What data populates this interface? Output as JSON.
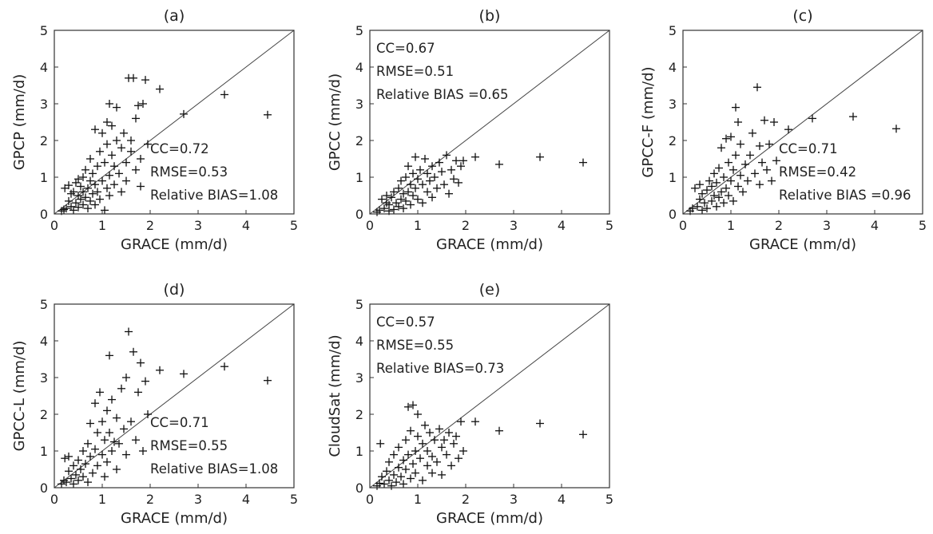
{
  "chart_data": [
    {
      "type": "scatter",
      "panel": "(a)",
      "xlabel": "GRACE (mm/d)",
      "ylabel": "GPCP (mm/d)",
      "xlim": [
        0,
        5
      ],
      "ylim": [
        0,
        5
      ],
      "xticks": [
        "0",
        "1",
        "2",
        "3",
        "4",
        "5"
      ],
      "yticks": [
        "0",
        "1",
        "2",
        "3",
        "4",
        "5"
      ],
      "reference_line": "1:1",
      "stats": [
        "CC=0.72",
        "RMSE=0.53",
        "Relative BIAS=1.08"
      ],
      "stats_position": "bottom-right",
      "points": [
        [
          0.15,
          0.08
        ],
        [
          0.2,
          0.12
        ],
        [
          0.22,
          0.7
        ],
        [
          0.25,
          0.15
        ],
        [
          0.3,
          0.35
        ],
        [
          0.3,
          0.78
        ],
        [
          0.35,
          0.2
        ],
        [
          0.35,
          0.55
        ],
        [
          0.4,
          0.1
        ],
        [
          0.4,
          0.6
        ],
        [
          0.45,
          0.3
        ],
        [
          0.45,
          0.85
        ],
        [
          0.5,
          0.18
        ],
        [
          0.5,
          0.5
        ],
        [
          0.5,
          0.95
        ],
        [
          0.55,
          0.4
        ],
        [
          0.55,
          0.75
        ],
        [
          0.6,
          0.25
        ],
        [
          0.6,
          0.6
        ],
        [
          0.6,
          1.0
        ],
        [
          0.65,
          0.45
        ],
        [
          0.65,
          1.2
        ],
        [
          0.7,
          0.15
        ],
        [
          0.7,
          0.7
        ],
        [
          0.75,
          0.35
        ],
        [
          0.75,
          0.9
        ],
        [
          0.75,
          1.5
        ],
        [
          0.8,
          0.55
        ],
        [
          0.8,
          1.1
        ],
        [
          0.85,
          0.25
        ],
        [
          0.85,
          0.8
        ],
        [
          0.85,
          2.3
        ],
        [
          0.9,
          0.6
        ],
        [
          0.9,
          1.3
        ],
        [
          0.95,
          0.4
        ],
        [
          0.95,
          1.7
        ],
        [
          1.0,
          0.9
        ],
        [
          1.0,
          2.2
        ],
        [
          1.05,
          0.1
        ],
        [
          1.05,
          1.4
        ],
        [
          1.1,
          0.7
        ],
        [
          1.1,
          1.9
        ],
        [
          1.1,
          2.5
        ],
        [
          1.15,
          0.5
        ],
        [
          1.15,
          1.05
        ],
        [
          1.15,
          3.0
        ],
        [
          1.2,
          1.6
        ],
        [
          1.2,
          2.4
        ],
        [
          1.25,
          0.8
        ],
        [
          1.25,
          1.3
        ],
        [
          1.3,
          2.0
        ],
        [
          1.3,
          2.9
        ],
        [
          1.35,
          1.1
        ],
        [
          1.4,
          1.8
        ],
        [
          1.4,
          0.6
        ],
        [
          1.45,
          2.2
        ],
        [
          1.5,
          1.4
        ],
        [
          1.5,
          0.9
        ],
        [
          1.55,
          3.7
        ],
        [
          1.6,
          1.7
        ],
        [
          1.6,
          2.0
        ],
        [
          1.65,
          3.7
        ],
        [
          1.7,
          1.2
        ],
        [
          1.7,
          2.6
        ],
        [
          1.75,
          2.95
        ],
        [
          1.8,
          1.5
        ],
        [
          1.8,
          0.75
        ],
        [
          1.85,
          3.0
        ],
        [
          1.9,
          3.65
        ],
        [
          1.95,
          1.9
        ],
        [
          2.2,
          3.4
        ],
        [
          2.7,
          2.72
        ],
        [
          3.55,
          3.25
        ],
        [
          4.45,
          2.7
        ]
      ]
    },
    {
      "type": "scatter",
      "panel": "(b)",
      "xlabel": "GRACE (mm/d)",
      "ylabel": "GPCC (mm/d)",
      "xlim": [
        0,
        5
      ],
      "ylim": [
        0,
        5
      ],
      "xticks": [
        "0",
        "1",
        "2",
        "3",
        "4",
        "5"
      ],
      "yticks": [
        "0",
        "1",
        "2",
        "3",
        "4",
        "5"
      ],
      "reference_line": "1:1",
      "stats": [
        "CC=0.67",
        "RMSE=0.51",
        "Relative BIAS =0.65"
      ],
      "stats_position": "top-left",
      "points": [
        [
          0.15,
          0.05
        ],
        [
          0.2,
          0.1
        ],
        [
          0.25,
          0.4
        ],
        [
          0.3,
          0.15
        ],
        [
          0.35,
          0.3
        ],
        [
          0.35,
          0.5
        ],
        [
          0.4,
          0.08
        ],
        [
          0.4,
          0.25
        ],
        [
          0.45,
          0.45
        ],
        [
          0.5,
          0.12
        ],
        [
          0.5,
          0.6
        ],
        [
          0.55,
          0.3
        ],
        [
          0.6,
          0.2
        ],
        [
          0.6,
          0.7
        ],
        [
          0.65,
          0.4
        ],
        [
          0.65,
          0.9
        ],
        [
          0.7,
          0.15
        ],
        [
          0.7,
          0.55
        ],
        [
          0.75,
          0.35
        ],
        [
          0.75,
          1.0
        ],
        [
          0.8,
          0.6
        ],
        [
          0.8,
          1.3
        ],
        [
          0.85,
          0.25
        ],
        [
          0.85,
          0.8
        ],
        [
          0.9,
          0.5
        ],
        [
          0.9,
          1.1
        ],
        [
          0.95,
          0.7
        ],
        [
          0.95,
          1.55
        ],
        [
          1.0,
          0.4
        ],
        [
          1.0,
          0.95
        ],
        [
          1.05,
          1.2
        ],
        [
          1.1,
          0.3
        ],
        [
          1.1,
          0.8
        ],
        [
          1.15,
          1.5
        ],
        [
          1.2,
          0.6
        ],
        [
          1.2,
          1.1
        ],
        [
          1.25,
          0.9
        ],
        [
          1.3,
          1.3
        ],
        [
          1.3,
          0.45
        ],
        [
          1.35,
          1.0
        ],
        [
          1.4,
          0.7
        ],
        [
          1.45,
          1.4
        ],
        [
          1.5,
          1.15
        ],
        [
          1.55,
          0.8
        ],
        [
          1.6,
          1.6
        ],
        [
          1.65,
          0.55
        ],
        [
          1.7,
          1.2
        ],
        [
          1.75,
          0.95
        ],
        [
          1.8,
          1.45
        ],
        [
          1.85,
          0.85
        ],
        [
          1.9,
          1.3
        ],
        [
          1.95,
          1.45
        ],
        [
          2.2,
          1.55
        ],
        [
          2.7,
          1.35
        ],
        [
          3.55,
          1.55
        ],
        [
          4.45,
          1.4
        ]
      ]
    },
    {
      "type": "scatter",
      "panel": "(c)",
      "xlabel": "GRACE (mm/d)",
      "ylabel": "GPCC-F (mm/d)",
      "xlim": [
        0,
        5
      ],
      "ylim": [
        0,
        5
      ],
      "xticks": [
        "0",
        "1",
        "2",
        "3",
        "4",
        "5"
      ],
      "yticks": [
        "0",
        "1",
        "2",
        "3",
        "4",
        "5"
      ],
      "reference_line": "1:1",
      "stats": [
        "CC=0.71",
        "RMSE=0.42",
        "Relative BIAS =0.96"
      ],
      "stats_position": "bottom-right",
      "points": [
        [
          0.15,
          0.08
        ],
        [
          0.2,
          0.15
        ],
        [
          0.25,
          0.7
        ],
        [
          0.3,
          0.2
        ],
        [
          0.35,
          0.4
        ],
        [
          0.35,
          0.8
        ],
        [
          0.4,
          0.1
        ],
        [
          0.4,
          0.55
        ],
        [
          0.45,
          0.3
        ],
        [
          0.5,
          0.65
        ],
        [
          0.5,
          0.15
        ],
        [
          0.55,
          0.9
        ],
        [
          0.6,
          0.35
        ],
        [
          0.6,
          0.75
        ],
        [
          0.65,
          0.5
        ],
        [
          0.65,
          1.1
        ],
        [
          0.7,
          0.2
        ],
        [
          0.7,
          0.85
        ],
        [
          0.75,
          0.45
        ],
        [
          0.75,
          1.25
        ],
        [
          0.8,
          0.6
        ],
        [
          0.8,
          1.8
        ],
        [
          0.85,
          0.3
        ],
        [
          0.85,
          1.0
        ],
        [
          0.9,
          0.7
        ],
        [
          0.9,
          2.05
        ],
        [
          0.95,
          0.5
        ],
        [
          0.95,
          1.4
        ],
        [
          1.0,
          0.9
        ],
        [
          1.0,
          2.1
        ],
        [
          1.05,
          0.35
        ],
        [
          1.05,
          1.2
        ],
        [
          1.1,
          1.6
        ],
        [
          1.1,
          2.9
        ],
        [
          1.15,
          0.75
        ],
        [
          1.15,
          2.5
        ],
        [
          1.2,
          1.05
        ],
        [
          1.2,
          1.9
        ],
        [
          1.25,
          0.6
        ],
        [
          1.3,
          1.35
        ],
        [
          1.35,
          0.9
        ],
        [
          1.4,
          1.6
        ],
        [
          1.45,
          2.2
        ],
        [
          1.5,
          1.1
        ],
        [
          1.55,
          3.45
        ],
        [
          1.6,
          1.85
        ],
        [
          1.6,
          0.8
        ],
        [
          1.65,
          1.4
        ],
        [
          1.7,
          2.55
        ],
        [
          1.75,
          1.2
        ],
        [
          1.8,
          1.9
        ],
        [
          1.85,
          0.9
        ],
        [
          1.9,
          2.5
        ],
        [
          1.95,
          1.45
        ],
        [
          2.2,
          2.3
        ],
        [
          2.7,
          2.6
        ],
        [
          3.55,
          2.65
        ],
        [
          4.45,
          2.32
        ]
      ]
    },
    {
      "type": "scatter",
      "panel": "(d)",
      "xlabel": "GRACE (mm/d)",
      "ylabel": "GPCC-L (mm/d)",
      "xlim": [
        0,
        5
      ],
      "ylim": [
        0,
        5
      ],
      "xticks": [
        "0",
        "1",
        "2",
        "3",
        "4",
        "5"
      ],
      "yticks": [
        "0",
        "1",
        "2",
        "3",
        "4",
        "5"
      ],
      "reference_line": "1:1",
      "stats": [
        "CC=0.71",
        "RMSE=0.55",
        "Relative BIAS=1.08"
      ],
      "stats_position": "bottom-right",
      "points": [
        [
          0.15,
          0.1
        ],
        [
          0.2,
          0.2
        ],
        [
          0.22,
          0.8
        ],
        [
          0.25,
          0.15
        ],
        [
          0.3,
          0.45
        ],
        [
          0.3,
          0.85
        ],
        [
          0.35,
          0.25
        ],
        [
          0.4,
          0.6
        ],
        [
          0.4,
          0.1
        ],
        [
          0.45,
          0.35
        ],
        [
          0.5,
          0.75
        ],
        [
          0.5,
          0.2
        ],
        [
          0.55,
          0.5
        ],
        [
          0.6,
          1.0
        ],
        [
          0.6,
          0.3
        ],
        [
          0.65,
          0.65
        ],
        [
          0.7,
          1.2
        ],
        [
          0.7,
          0.15
        ],
        [
          0.75,
          0.85
        ],
        [
          0.75,
          1.75
        ],
        [
          0.8,
          0.4
        ],
        [
          0.85,
          1.05
        ],
        [
          0.85,
          2.3
        ],
        [
          0.9,
          0.6
        ],
        [
          0.9,
          1.5
        ],
        [
          0.95,
          2.6
        ],
        [
          1.0,
          0.9
        ],
        [
          1.0,
          1.8
        ],
        [
          1.05,
          0.3
        ],
        [
          1.05,
          1.3
        ],
        [
          1.1,
          2.1
        ],
        [
          1.1,
          0.7
        ],
        [
          1.15,
          3.6
        ],
        [
          1.15,
          1.5
        ],
        [
          1.2,
          1.0
        ],
        [
          1.2,
          2.4
        ],
        [
          1.25,
          1.25
        ],
        [
          1.3,
          1.9
        ],
        [
          1.3,
          0.5
        ],
        [
          1.35,
          1.2
        ],
        [
          1.4,
          2.7
        ],
        [
          1.45,
          1.6
        ],
        [
          1.5,
          0.9
        ],
        [
          1.5,
          3.0
        ],
        [
          1.55,
          4.25
        ],
        [
          1.6,
          1.8
        ],
        [
          1.65,
          3.7
        ],
        [
          1.7,
          1.3
        ],
        [
          1.75,
          2.6
        ],
        [
          1.8,
          3.4
        ],
        [
          1.85,
          1.0
        ],
        [
          1.9,
          2.9
        ],
        [
          1.95,
          2.0
        ],
        [
          2.2,
          3.2
        ],
        [
          2.7,
          3.1
        ],
        [
          3.55,
          3.3
        ],
        [
          4.45,
          2.92
        ]
      ]
    },
    {
      "type": "scatter",
      "panel": "(e)",
      "xlabel": "GRACE (mm/d)",
      "ylabel": "CloudSat (mm/d)",
      "xlim": [
        0,
        5
      ],
      "ylim": [
        0,
        5
      ],
      "xticks": [
        "0",
        "1",
        "2",
        "3",
        "4",
        "5"
      ],
      "yticks": [
        "0",
        "1",
        "2",
        "3",
        "4",
        "5"
      ],
      "reference_line": "1:1",
      "stats": [
        "CC=0.57",
        "RMSE=0.55",
        "Relative BIAS=0.73"
      ],
      "stats_position": "top-left",
      "points": [
        [
          0.15,
          0.05
        ],
        [
          0.2,
          0.12
        ],
        [
          0.22,
          1.2
        ],
        [
          0.25,
          0.3
        ],
        [
          0.3,
          0.1
        ],
        [
          0.35,
          0.45
        ],
        [
          0.4,
          0.2
        ],
        [
          0.4,
          0.7
        ],
        [
          0.45,
          0.05
        ],
        [
          0.5,
          0.35
        ],
        [
          0.5,
          0.9
        ],
        [
          0.55,
          0.15
        ],
        [
          0.6,
          0.55
        ],
        [
          0.6,
          1.1
        ],
        [
          0.65,
          0.3
        ],
        [
          0.7,
          0.75
        ],
        [
          0.7,
          0.1
        ],
        [
          0.75,
          1.3
        ],
        [
          0.75,
          0.5
        ],
        [
          0.8,
          0.9
        ],
        [
          0.8,
          2.2
        ],
        [
          0.85,
          0.25
        ],
        [
          0.85,
          1.55
        ],
        [
          0.9,
          0.65
        ],
        [
          0.9,
          2.25
        ],
        [
          0.95,
          1.0
        ],
        [
          0.95,
          0.4
        ],
        [
          1.0,
          1.4
        ],
        [
          1.0,
          2.0
        ],
        [
          1.05,
          0.8
        ],
        [
          1.1,
          0.2
        ],
        [
          1.1,
          1.2
        ],
        [
          1.15,
          1.7
        ],
        [
          1.2,
          0.6
        ],
        [
          1.2,
          1.0
        ],
        [
          1.25,
          1.5
        ],
        [
          1.3,
          0.4
        ],
        [
          1.3,
          0.85
        ],
        [
          1.35,
          1.3
        ],
        [
          1.4,
          0.7
        ],
        [
          1.45,
          1.6
        ],
        [
          1.5,
          1.1
        ],
        [
          1.5,
          0.35
        ],
        [
          1.55,
          1.3
        ],
        [
          1.6,
          0.9
        ],
        [
          1.65,
          1.5
        ],
        [
          1.7,
          0.6
        ],
        [
          1.75,
          1.2
        ],
        [
          1.8,
          1.4
        ],
        [
          1.85,
          0.8
        ],
        [
          1.9,
          1.8
        ],
        [
          1.95,
          1.0
        ],
        [
          2.2,
          1.8
        ],
        [
          2.7,
          1.55
        ],
        [
          3.55,
          1.75
        ],
        [
          4.45,
          1.45
        ]
      ]
    }
  ]
}
